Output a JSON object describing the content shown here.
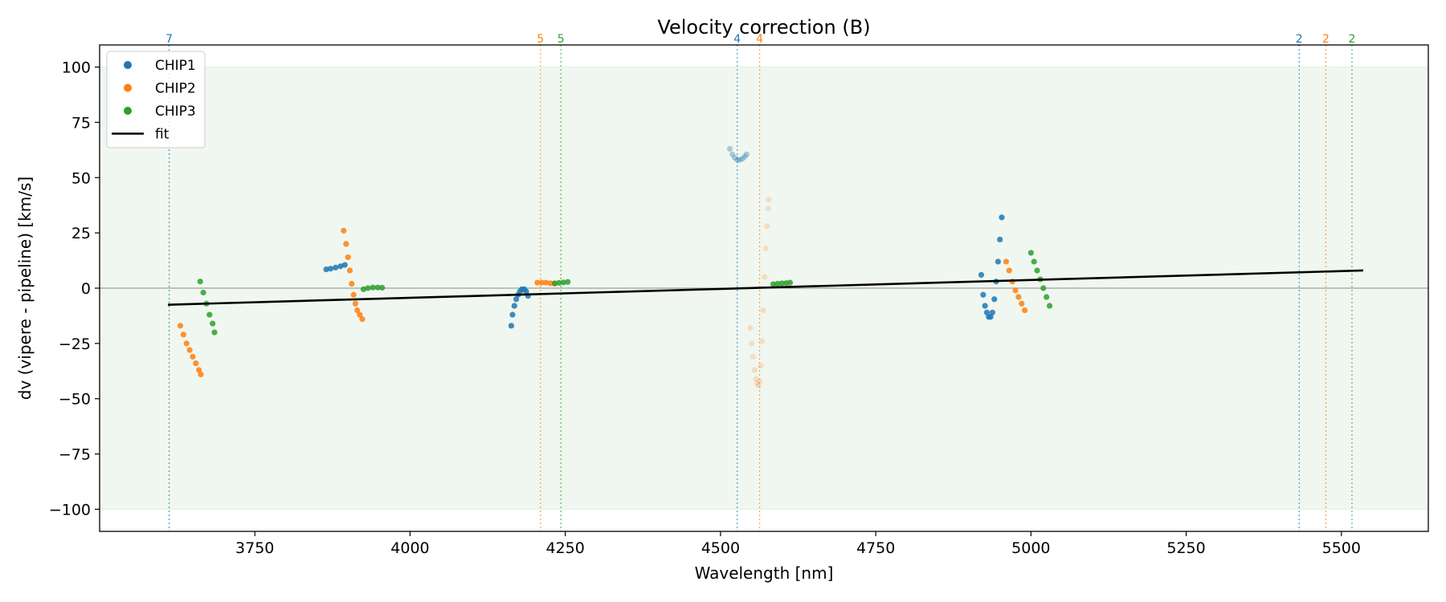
{
  "chart_data": {
    "type": "scatter",
    "title": "Velocity correction (B)",
    "xlabel": "Wavelength [nm]",
    "ylabel": "dv (vipere - pipeline) [km/s]",
    "xlim": [
      3500,
      5640
    ],
    "ylim": [
      -110,
      110
    ],
    "xticks": [
      3750,
      4000,
      4250,
      4500,
      4750,
      5000,
      5250,
      5500
    ],
    "yticks": [
      -100,
      -75,
      -50,
      -25,
      0,
      25,
      50,
      75,
      100
    ],
    "grid": false,
    "legend_position": "top-left",
    "shaded_band": {
      "y": [
        -100,
        100
      ],
      "color": "#f0f7f0"
    },
    "zero_line": {
      "y": 0,
      "color": "#8a8a8a"
    },
    "colors": {
      "CHIP1": "#1f77b4",
      "CHIP2": "#ff7f0e",
      "CHIP3": "#2ca02c",
      "fit": "#000000"
    },
    "legend": [
      {
        "name": "CHIP1",
        "kind": "marker"
      },
      {
        "name": "CHIP2",
        "kind": "marker"
      },
      {
        "name": "CHIP3",
        "kind": "marker"
      },
      {
        "name": "fit",
        "kind": "line"
      }
    ],
    "fit": {
      "x": [
        3610,
        5535
      ],
      "y": [
        -7.5,
        8.0
      ]
    },
    "order_markers": [
      {
        "x": 3612,
        "label": "7",
        "series": "CHIP1"
      },
      {
        "x": 4210,
        "label": "5",
        "series": "CHIP2"
      },
      {
        "x": 4243,
        "label": "5",
        "series": "CHIP3"
      },
      {
        "x": 4527,
        "label": "4",
        "series": "CHIP1"
      },
      {
        "x": 4563,
        "label": "4",
        "series": "CHIP2"
      },
      {
        "x": 5432,
        "label": "2",
        "series": "CHIP1"
      },
      {
        "x": 5475,
        "label": "2",
        "series": "CHIP2"
      },
      {
        "x": 5517,
        "label": "2",
        "series": "CHIP3"
      }
    ],
    "segments": [
      {
        "series": "CHIP2",
        "opacity": 0.85,
        "x": [
          3630,
          3635,
          3640,
          3645,
          3650,
          3655,
          3660,
          3663
        ],
        "y": [
          -17,
          -21,
          -25,
          -28,
          -31,
          -34,
          -37,
          -39
        ]
      },
      {
        "series": "CHIP3",
        "opacity": 0.85,
        "x": [
          3662,
          3667,
          3672,
          3677,
          3682,
          3685
        ],
        "y": [
          3,
          -2,
          -7,
          -12,
          -16,
          -20
        ]
      },
      {
        "series": "CHIP1",
        "opacity": 0.85,
        "x": [
          3865,
          3872,
          3880,
          3888,
          3895
        ],
        "y": [
          8.5,
          8.8,
          9.3,
          9.9,
          10.5
        ]
      },
      {
        "series": "CHIP2",
        "opacity": 0.85,
        "x": [
          3893,
          3897,
          3900,
          3903,
          3906,
          3909,
          3912,
          3915,
          3919,
          3923
        ],
        "y": [
          26,
          20,
          14,
          8,
          2,
          -3,
          -7,
          -10,
          -12,
          -14
        ]
      },
      {
        "series": "CHIP3",
        "opacity": 0.85,
        "x": [
          3925,
          3932,
          3940,
          3948,
          3955
        ],
        "y": [
          -0.5,
          0,
          0.3,
          0.3,
          0.2
        ]
      },
      {
        "series": "CHIP1",
        "opacity": 0.85,
        "x": [
          4163,
          4165,
          4168,
          4171,
          4174,
          4177,
          4180,
          4184,
          4187,
          4190
        ],
        "y": [
          -17,
          -12,
          -8,
          -5,
          -3,
          -1.5,
          -0.5,
          -0.5,
          -1.5,
          -3.5
        ]
      },
      {
        "series": "CHIP2",
        "opacity": 0.85,
        "x": [
          4205,
          4212,
          4219,
          4226,
          4233
        ],
        "y": [
          2.5,
          2.5,
          2.5,
          2.2,
          2.0
        ]
      },
      {
        "series": "CHIP3",
        "opacity": 0.85,
        "x": [
          4233,
          4240,
          4247,
          4254
        ],
        "y": [
          2.2,
          2.4,
          2.6,
          2.8
        ]
      },
      {
        "series": "CHIP1",
        "opacity": 0.35,
        "x": [
          4515,
          4519,
          4523,
          4527,
          4531,
          4535,
          4539,
          4542
        ],
        "y": [
          63,
          60.5,
          59,
          58,
          58,
          58.5,
          59.5,
          60.5
        ]
      },
      {
        "series": "CHIP2",
        "opacity": 0.2,
        "x": [
          4548,
          4550,
          4552,
          4555,
          4557,
          4559,
          4561,
          4563,
          4565,
          4567,
          4569,
          4571,
          4573,
          4575,
          4577,
          4578
        ],
        "y": [
          -18,
          -25,
          -31,
          -37,
          -41,
          -43,
          -44,
          -42,
          -35,
          -24,
          -10,
          5,
          18,
          28,
          36,
          40
        ]
      },
      {
        "series": "CHIP3",
        "opacity": 0.85,
        "x": [
          4585,
          4592,
          4599,
          4606,
          4612
        ],
        "y": [
          1.8,
          2.0,
          2.2,
          2.3,
          2.5
        ]
      },
      {
        "series": "CHIP1",
        "opacity": 0.85,
        "x": [
          4920,
          4923,
          4926,
          4929,
          4932,
          4935,
          4938,
          4941,
          4944,
          4947,
          4950,
          4953
        ],
        "y": [
          6,
          -3,
          -8,
          -11,
          -13,
          -13,
          -11,
          -5,
          3,
          12,
          22,
          32
        ]
      },
      {
        "series": "CHIP2",
        "opacity": 0.85,
        "x": [
          4960,
          4965,
          4970,
          4975,
          4980,
          4985,
          4990
        ],
        "y": [
          12,
          8,
          3,
          -1,
          -4,
          -7,
          -10
        ]
      },
      {
        "series": "CHIP3",
        "opacity": 0.85,
        "x": [
          5000,
          5005,
          5010,
          5015,
          5020,
          5025,
          5030
        ],
        "y": [
          16,
          12,
          8,
          4,
          0,
          -4,
          -8
        ]
      }
    ]
  }
}
